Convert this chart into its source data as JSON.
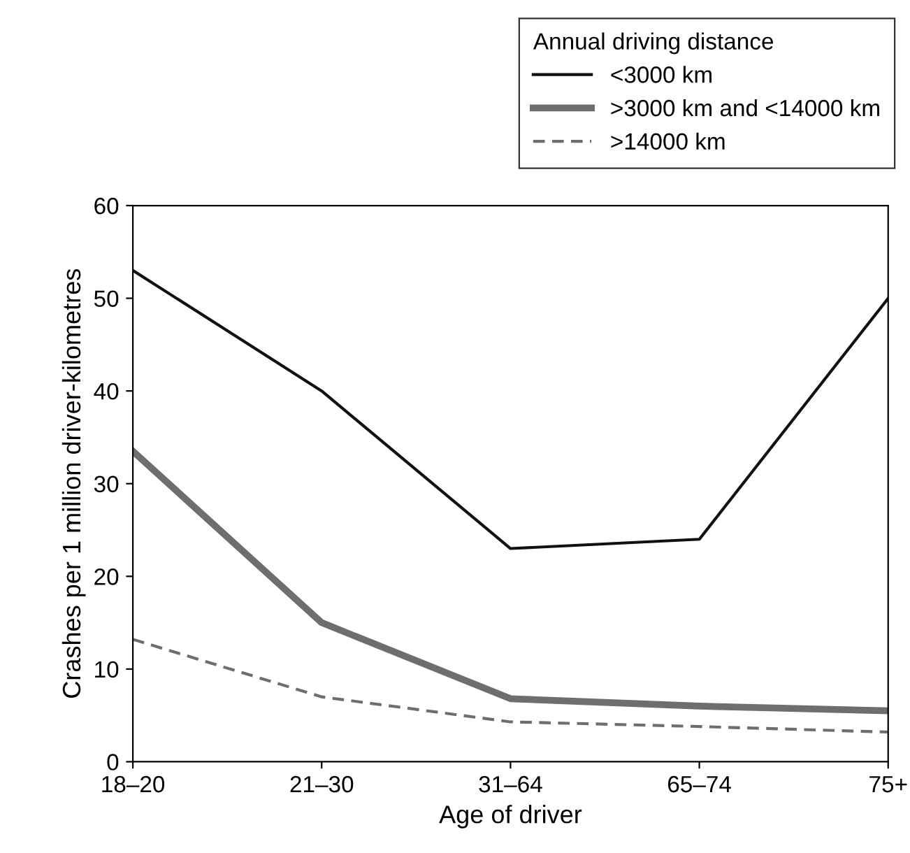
{
  "chart_data": {
    "type": "line",
    "xlabel": "Age of driver",
    "ylabel": "Crashes per 1 million driver-kilometres",
    "legend_title": "Annual driving distance",
    "legend": "top right",
    "grid": false,
    "marker": "none",
    "categories": [
      "18–20",
      "21–30",
      "31–64",
      "65–74",
      "75+"
    ],
    "ylim": [
      0,
      60
    ],
    "yticks": [
      0,
      10,
      20,
      30,
      40,
      50,
      60
    ],
    "series": [
      {
        "name": "<3000 km",
        "color": "#111111",
        "line_style": "solid",
        "values": [
          53,
          40,
          23,
          24,
          50
        ]
      },
      {
        "name": ">3000 km and <14000 km",
        "color": "#6e6e6e",
        "line_style": "solid",
        "values": [
          33.5,
          15,
          6.8,
          6,
          5.5
        ]
      },
      {
        "name": ">14000 km",
        "color": "#6e6e6e",
        "line_style": "dashed",
        "values": [
          13.2,
          7,
          4.3,
          3.8,
          3.2
        ]
      }
    ]
  }
}
